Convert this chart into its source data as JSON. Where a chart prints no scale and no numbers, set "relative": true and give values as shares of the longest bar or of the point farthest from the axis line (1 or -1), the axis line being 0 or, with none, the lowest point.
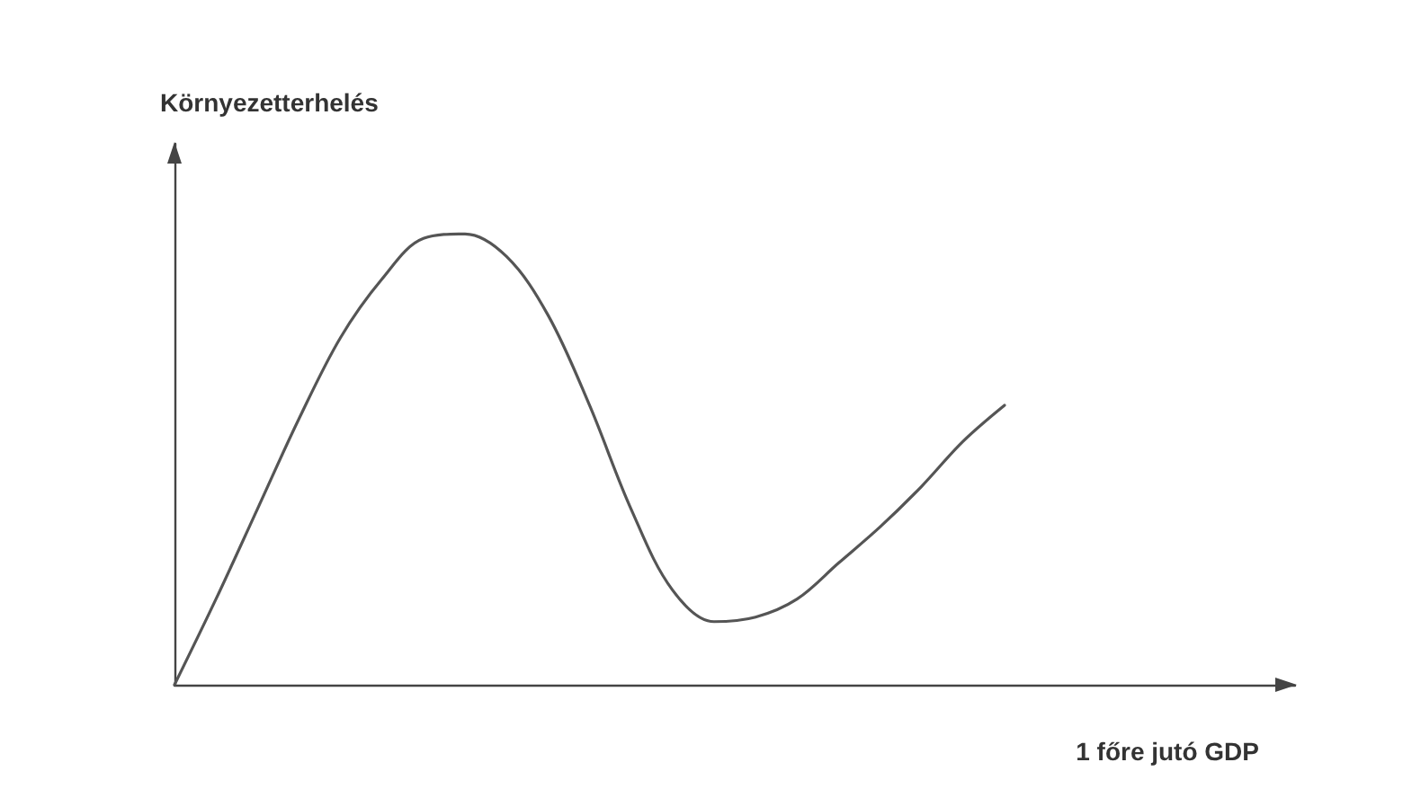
{
  "chart_data": {
    "type": "line",
    "relative": true,
    "xlabel": "1 főre jutó GDP",
    "ylabel": "Környezetterhelés",
    "marker": "none",
    "grid": false,
    "categories": [
      null,
      null,
      null,
      null,
      null,
      null,
      null,
      null,
      null,
      null,
      null,
      null,
      null,
      null,
      null,
      null,
      null,
      null,
      null,
      null,
      null,
      null,
      null,
      null,
      null,
      null,
      null,
      null
    ],
    "series": [
      {
        "color": "#555555",
        "values": [
          0,
          0.19,
          0.39,
          0.59,
          0.77,
          0.9,
          0.99,
          1,
          0.95,
          0.82,
          0.62,
          0.39,
          0.21,
          0.14,
          0.15,
          0.19,
          0.27,
          0.35,
          0.44,
          0.54,
          0.62,
          null,
          null,
          null,
          null,
          null,
          null,
          null
        ]
      }
    ]
  }
}
